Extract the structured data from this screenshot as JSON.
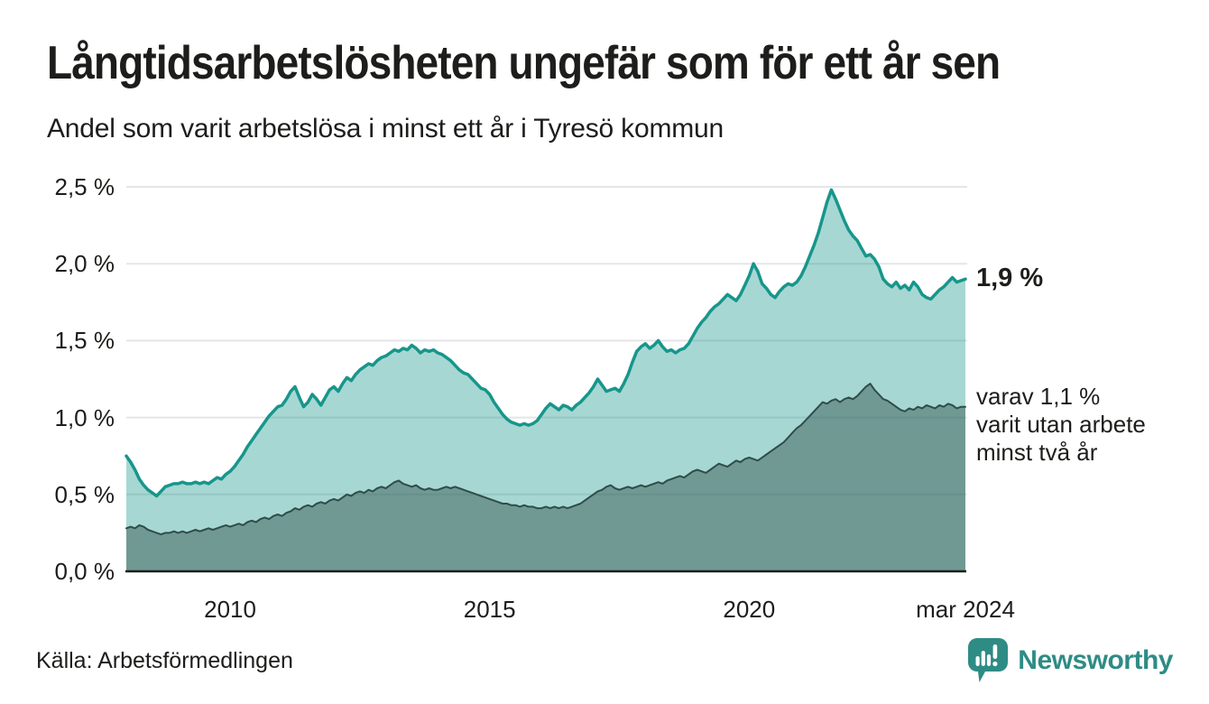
{
  "header": {
    "title": "Långtidsarbetslösheten ungefär som för ett år sen",
    "subtitle": "Andel som varit arbetslösa i minst ett år i Tyresö kommun"
  },
  "chart_data": {
    "type": "area",
    "title": "Långtidsarbetslösheten ungefär som för ett år sen",
    "subtitle": "Andel som varit arbetslösa i minst ett år i Tyresö kommun",
    "x_start": "2008-01",
    "x_end": "2024-03",
    "x_axis": {
      "domain": [
        2008,
        2024.1667
      ],
      "ticks": [
        {
          "label": "2010",
          "t": 2010
        },
        {
          "label": "2015",
          "t": 2015
        },
        {
          "label": "2020",
          "t": 2020
        },
        {
          "label": "mar 2024",
          "t": 2024.1667
        }
      ]
    },
    "y_axis": {
      "ticks": [
        {
          "label": "2,5 %",
          "value": 2.5
        },
        {
          "label": "2,0 %",
          "value": 2.0
        },
        {
          "label": "1,5 %",
          "value": 1.5
        },
        {
          "label": "1,0 %",
          "value": 1.0
        },
        {
          "label": "0,5 %",
          "value": 0.5
        },
        {
          "label": "0,0 %",
          "value": 0.0
        }
      ]
    },
    "ylim": [
      0,
      2.5
    ],
    "grid": true,
    "colors": {
      "line_one_year": "#17968b",
      "fill_one_year": "rgba(23,150,139,0.38)",
      "line_two_year": "#2f4d48",
      "fill_two_year": "rgba(47,77,72,0.45)",
      "gridline": "#e4e5e9",
      "baseline": "#1d1d1b"
    },
    "series": [
      {
        "name": "Arbetslösa minst ett år",
        "end_value_pct": 1.9,
        "values": [
          0.75,
          0.71,
          0.66,
          0.6,
          0.56,
          0.53,
          0.51,
          0.49,
          0.52,
          0.55,
          0.56,
          0.57,
          0.57,
          0.58,
          0.57,
          0.57,
          0.58,
          0.57,
          0.58,
          0.57,
          0.59,
          0.61,
          0.6,
          0.63,
          0.65,
          0.68,
          0.72,
          0.76,
          0.81,
          0.85,
          0.89,
          0.93,
          0.97,
          1.01,
          1.04,
          1.07,
          1.08,
          1.12,
          1.17,
          1.2,
          1.13,
          1.07,
          1.1,
          1.15,
          1.12,
          1.08,
          1.13,
          1.18,
          1.2,
          1.17,
          1.22,
          1.26,
          1.24,
          1.28,
          1.31,
          1.33,
          1.35,
          1.34,
          1.37,
          1.39,
          1.4,
          1.42,
          1.44,
          1.43,
          1.45,
          1.44,
          1.47,
          1.45,
          1.42,
          1.44,
          1.43,
          1.44,
          1.42,
          1.41,
          1.39,
          1.37,
          1.34,
          1.31,
          1.29,
          1.28,
          1.25,
          1.22,
          1.19,
          1.18,
          1.15,
          1.1,
          1.06,
          1.02,
          0.99,
          0.97,
          0.96,
          0.95,
          0.96,
          0.95,
          0.96,
          0.98,
          1.02,
          1.06,
          1.09,
          1.07,
          1.05,
          1.08,
          1.07,
          1.05,
          1.08,
          1.1,
          1.13,
          1.16,
          1.2,
          1.25,
          1.21,
          1.17,
          1.18,
          1.19,
          1.17,
          1.22,
          1.28,
          1.36,
          1.43,
          1.46,
          1.48,
          1.45,
          1.47,
          1.5,
          1.46,
          1.43,
          1.44,
          1.42,
          1.44,
          1.45,
          1.48,
          1.53,
          1.58,
          1.62,
          1.65,
          1.69,
          1.72,
          1.74,
          1.77,
          1.8,
          1.78,
          1.76,
          1.8,
          1.86,
          1.92,
          2.0,
          1.95,
          1.87,
          1.84,
          1.8,
          1.78,
          1.82,
          1.85,
          1.87,
          1.86,
          1.88,
          1.92,
          1.98,
          2.05,
          2.12,
          2.2,
          2.3,
          2.4,
          2.48,
          2.42,
          2.35,
          2.28,
          2.22,
          2.18,
          2.15,
          2.1,
          2.05,
          2.06,
          2.03,
          1.98,
          1.9,
          1.87,
          1.85,
          1.88,
          1.84,
          1.86,
          1.83,
          1.88,
          1.85,
          1.8,
          1.78,
          1.77,
          1.8,
          1.83,
          1.85,
          1.88,
          1.91,
          1.88,
          1.89,
          1.9
        ]
      },
      {
        "name": "Utan arbete minst två år",
        "end_value_pct": 1.1,
        "values": [
          0.28,
          0.29,
          0.28,
          0.3,
          0.29,
          0.27,
          0.26,
          0.25,
          0.24,
          0.25,
          0.25,
          0.26,
          0.25,
          0.26,
          0.25,
          0.26,
          0.27,
          0.26,
          0.27,
          0.28,
          0.27,
          0.28,
          0.29,
          0.3,
          0.29,
          0.3,
          0.31,
          0.3,
          0.32,
          0.33,
          0.32,
          0.34,
          0.35,
          0.34,
          0.36,
          0.37,
          0.36,
          0.38,
          0.39,
          0.41,
          0.4,
          0.42,
          0.43,
          0.42,
          0.44,
          0.45,
          0.44,
          0.46,
          0.47,
          0.46,
          0.48,
          0.5,
          0.49,
          0.51,
          0.52,
          0.51,
          0.53,
          0.52,
          0.54,
          0.55,
          0.54,
          0.56,
          0.58,
          0.59,
          0.57,
          0.56,
          0.55,
          0.56,
          0.54,
          0.53,
          0.54,
          0.53,
          0.53,
          0.54,
          0.55,
          0.54,
          0.55,
          0.54,
          0.53,
          0.52,
          0.51,
          0.5,
          0.49,
          0.48,
          0.47,
          0.46,
          0.45,
          0.44,
          0.44,
          0.43,
          0.43,
          0.42,
          0.43,
          0.42,
          0.42,
          0.41,
          0.41,
          0.42,
          0.41,
          0.42,
          0.41,
          0.42,
          0.41,
          0.42,
          0.43,
          0.44,
          0.46,
          0.48,
          0.5,
          0.52,
          0.53,
          0.55,
          0.56,
          0.54,
          0.53,
          0.54,
          0.55,
          0.54,
          0.55,
          0.56,
          0.55,
          0.56,
          0.57,
          0.58,
          0.57,
          0.59,
          0.6,
          0.61,
          0.62,
          0.61,
          0.63,
          0.65,
          0.66,
          0.65,
          0.64,
          0.66,
          0.68,
          0.7,
          0.69,
          0.68,
          0.7,
          0.72,
          0.71,
          0.73,
          0.74,
          0.73,
          0.72,
          0.74,
          0.76,
          0.78,
          0.8,
          0.82,
          0.84,
          0.87,
          0.9,
          0.93,
          0.95,
          0.98,
          1.01,
          1.04,
          1.07,
          1.1,
          1.09,
          1.11,
          1.12,
          1.1,
          1.12,
          1.13,
          1.12,
          1.14,
          1.17,
          1.2,
          1.22,
          1.18,
          1.15,
          1.12,
          1.11,
          1.09,
          1.07,
          1.05,
          1.04,
          1.06,
          1.05,
          1.07,
          1.06,
          1.08,
          1.07,
          1.06,
          1.08,
          1.07,
          1.09,
          1.08,
          1.06,
          1.07,
          1.07
        ]
      }
    ],
    "annotations": {
      "end_label": "1,9 %",
      "sub_label_lines": [
        "varav 1,1 %",
        "varit utan arbete",
        "minst två år"
      ]
    },
    "legend_position": "none"
  },
  "footer": {
    "source": "Källa: Arbetsförmedlingen",
    "brand": "Newsworthy"
  }
}
